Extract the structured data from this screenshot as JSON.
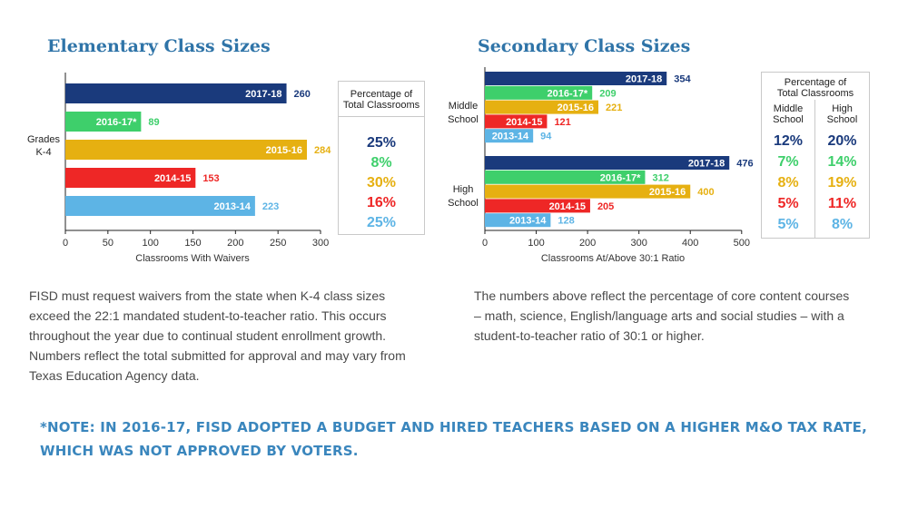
{
  "colors": {
    "2017-18": "#1a3a7c",
    "2016-17*": "#3ecf6b",
    "2015-16": "#e6b011",
    "2014-15": "#ee2726",
    "2013-14": "#5db4e5"
  },
  "elementary": {
    "title": "Elementary Class Sizes",
    "pct_header": [
      "Percentage of",
      "Total Classrooms"
    ],
    "percentages": [
      "25%",
      "8%",
      "30%",
      "16%",
      "25%"
    ],
    "description": [
      "FISD must request waivers from the state when K-4 class sizes",
      "exceed the 22:1 mandated student-to-teacher ratio. This occurs",
      "throughout the year due to continual student enrollment growth.",
      "Numbers reflect the total submitted for approval and may vary from",
      "Texas Education Agency data."
    ]
  },
  "secondary": {
    "title": "Secondary Class Sizes",
    "pct_header": [
      "Percentage of",
      "Total Classrooms"
    ],
    "col_headers": [
      [
        "Middle",
        "School"
      ],
      [
        "High",
        "School"
      ]
    ],
    "middle_percentages": [
      "12%",
      "7%",
      "8%",
      "5%",
      "5%"
    ],
    "high_percentages": [
      "20%",
      "14%",
      "19%",
      "11%",
      "8%"
    ],
    "description": [
      "The numbers above reflect the percentage of core content courses",
      "– math, science, English/language arts and social studies – with a",
      "student-to-teacher ratio of 30:1 or higher."
    ]
  },
  "note": "*NOTE: IN 2016-17, FISD ADOPTED A BUDGET AND HIRED TEACHERS BASED ON A HIGHER M&O TAX RATE, WHICH WAS NOT APPROVED BY VOTERS.",
  "chart_data": [
    {
      "type": "bar",
      "orientation": "horizontal",
      "title": "Elementary Class Sizes",
      "xlabel": "Classrooms With Waivers",
      "group_label": [
        "Grades",
        "K-4"
      ],
      "xlim": [
        0,
        300
      ],
      "xticks": [
        "0",
        "50",
        "100",
        "150",
        "200",
        "250",
        "300"
      ],
      "categories": [
        "2017-18",
        "2016-17*",
        "2015-16",
        "2014-15",
        "2013-14"
      ],
      "values": [
        260,
        89,
        284,
        153,
        223
      ]
    },
    {
      "type": "bar",
      "orientation": "horizontal",
      "title": "Secondary Class Sizes",
      "xlabel": "Classrooms At/Above 30:1 Ratio",
      "xlim": [
        0,
        500
      ],
      "xticks": [
        "0",
        "100",
        "200",
        "300",
        "400",
        "500"
      ],
      "categories": [
        "2017-18",
        "2016-17*",
        "2015-16",
        "2014-15",
        "2013-14"
      ],
      "series": [
        {
          "group_label": [
            "Middle",
            "School"
          ],
          "values": [
            354,
            209,
            221,
            121,
            94
          ]
        },
        {
          "group_label": [
            "High",
            "School"
          ],
          "values": [
            476,
            312,
            400,
            205,
            128
          ]
        }
      ]
    }
  ]
}
